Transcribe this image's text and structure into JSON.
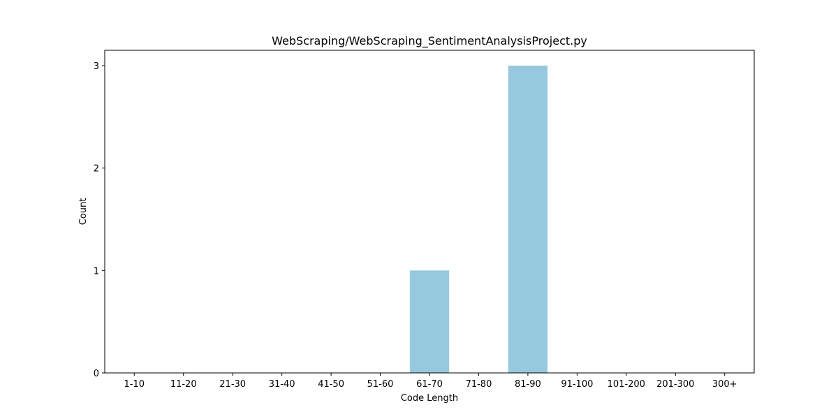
{
  "chart_data": {
    "type": "bar",
    "title": "WebScraping/WebScraping_SentimentAnalysisProject.py",
    "xlabel": "Code Length",
    "ylabel": "Count",
    "categories": [
      "1-10",
      "11-20",
      "21-30",
      "31-40",
      "41-50",
      "51-60",
      "61-70",
      "71-80",
      "81-90",
      "91-100",
      "101-200",
      "201-300",
      "300+"
    ],
    "values": [
      0,
      0,
      0,
      0,
      0,
      0,
      1,
      0,
      3,
      0,
      0,
      0,
      0
    ],
    "ylim": [
      0,
      3.15
    ],
    "yticks": [
      0,
      1,
      2,
      3
    ],
    "bar_color": "#96c9dd",
    "grid": false,
    "legend": "none"
  }
}
